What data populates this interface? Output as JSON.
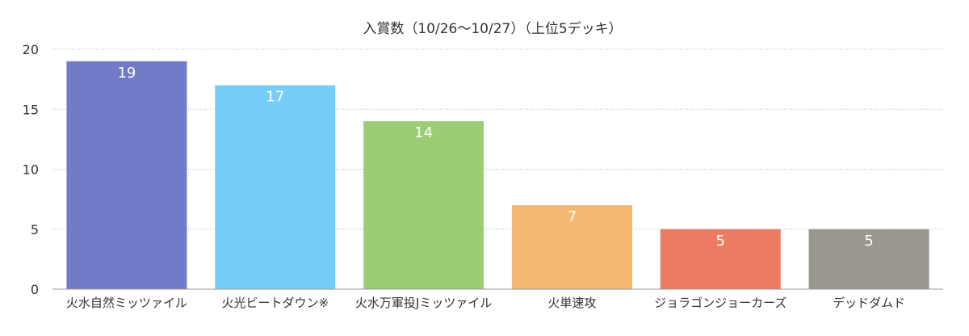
{
  "chart_data": {
    "type": "bar",
    "title": "入賞数（10/26〜10/27）（上位5デッキ）",
    "categories": [
      "火水自然ミッツァイル",
      "火光ビートダウン※",
      "火水万軍投Jミッツァイル",
      "火単速攻",
      "ジョラゴンジョーカーズ",
      "デッドダムド"
    ],
    "values": [
      19,
      17,
      14,
      7,
      5,
      5
    ],
    "colors": [
      "#717bc8",
      "#76cdf8",
      "#9ccd76",
      "#f4b870",
      "#ec7b61",
      "#9a9791"
    ],
    "ylim": [
      0,
      20
    ],
    "yticks": [
      0,
      5,
      10,
      15,
      20
    ],
    "grid": true,
    "data_labels": true,
    "xlabel": "",
    "ylabel": ""
  }
}
